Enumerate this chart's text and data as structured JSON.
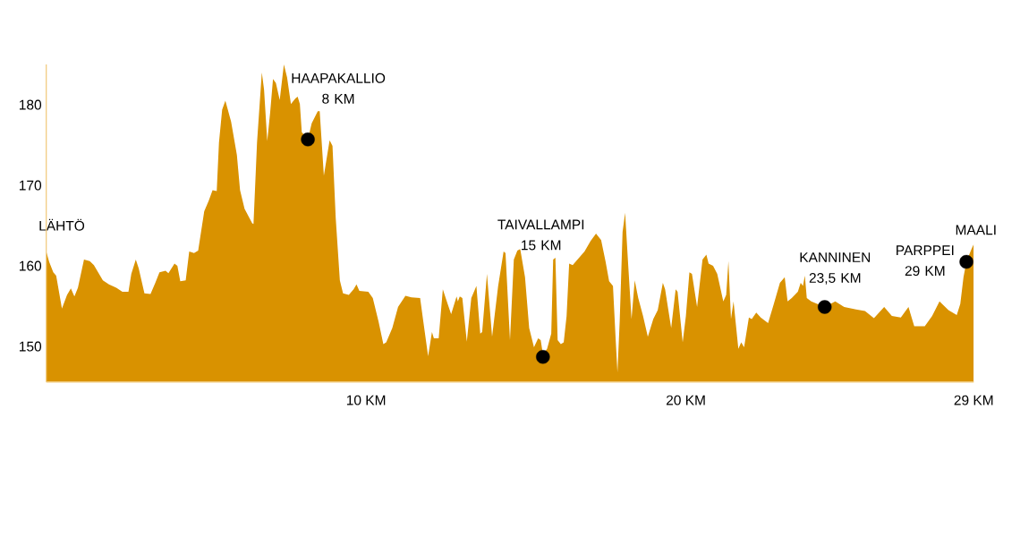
{
  "chart_data": {
    "type": "area",
    "xlim": [
      0,
      29.0
    ],
    "ylim": [
      145.6,
      185.0
    ],
    "xticks": [
      {
        "value": 10,
        "label": "10 KM"
      },
      {
        "value": 20,
        "label": "20 KM"
      },
      {
        "value": 29,
        "label": "29 KM"
      }
    ],
    "yticks": [
      150,
      160,
      170,
      180
    ],
    "series": [
      {
        "color": "#d99200",
        "x": [
          0.0,
          0.09,
          0.22,
          0.31,
          0.49,
          0.65,
          0.77,
          0.88,
          0.99,
          1.18,
          1.36,
          1.49,
          1.77,
          1.96,
          2.19,
          2.38,
          2.57,
          2.66,
          2.8,
          2.89,
          3.07,
          3.26,
          3.41,
          3.54,
          3.73,
          3.82,
          4.01,
          4.1,
          4.19,
          4.36,
          4.47,
          4.62,
          4.75,
          4.94,
          5.08,
          5.2,
          5.33,
          5.4,
          5.5,
          5.6,
          5.78,
          5.96,
          6.06,
          6.2,
          6.44,
          6.48,
          6.59,
          6.74,
          6.81,
          6.91,
          7.0,
          7.09,
          7.18,
          7.3,
          7.43,
          7.53,
          7.65,
          7.79,
          7.86,
          7.93,
          7.99,
          8.18,
          8.3,
          8.49,
          8.55,
          8.68,
          8.86,
          8.95,
          9.05,
          9.18,
          9.28,
          9.46,
          9.61,
          9.7,
          9.79,
          10.07,
          10.21,
          10.39,
          10.54,
          10.63,
          10.82,
          11.0,
          11.23,
          11.42,
          11.69,
          11.79,
          11.94,
          12.06,
          12.12,
          12.27,
          12.4,
          12.55,
          12.66,
          12.83,
          12.87,
          12.93,
          13.01,
          13.15,
          13.29,
          13.45,
          13.57,
          13.63,
          13.78,
          13.94,
          14.13,
          14.3,
          14.36,
          14.5,
          14.62,
          14.73,
          14.82,
          14.97,
          15.1,
          15.25,
          15.38,
          15.46,
          15.53,
          15.66,
          15.79,
          15.85,
          15.92,
          15.99,
          16.09,
          16.18,
          16.27,
          16.35,
          16.46,
          16.61,
          16.83,
          17.02,
          17.19,
          17.35,
          17.49,
          17.6,
          17.72,
          17.8,
          17.86,
          17.93,
          18.02,
          18.1,
          18.19,
          18.3,
          18.4,
          18.51,
          18.66,
          18.81,
          18.98,
          19.12,
          19.28,
          19.35,
          19.54,
          19.68,
          19.74,
          19.9,
          20.0,
          20.11,
          20.19,
          20.35,
          20.52,
          20.64,
          20.71,
          20.85,
          20.98,
          21.17,
          21.26,
          21.33,
          21.41,
          21.49,
          21.64,
          21.73,
          21.82,
          21.97,
          22.06,
          22.2,
          22.34,
          22.57,
          22.75,
          22.94,
          23.09,
          23.18,
          23.31,
          23.5,
          23.59,
          23.66,
          23.72,
          23.78,
          23.92,
          24.34,
          24.67,
          24.95,
          25.32,
          25.6,
          25.88,
          26.2,
          26.44,
          26.72,
          26.96,
          27.14,
          27.47,
          27.7,
          27.93,
          28.21,
          28.47,
          28.58,
          28.68,
          28.77,
          28.91,
          29.0
        ],
        "values": [
          161.8,
          160.5,
          159.2,
          158.8,
          154.7,
          156.4,
          157.2,
          156.2,
          157.3,
          160.8,
          160.6,
          160.1,
          158.2,
          157.7,
          157.3,
          156.8,
          156.8,
          159.0,
          160.8,
          159.7,
          156.6,
          156.5,
          157.9,
          159.2,
          159.4,
          159.1,
          160.3,
          160.0,
          158.1,
          158.2,
          161.8,
          161.6,
          161.9,
          166.8,
          168.1,
          169.4,
          169.3,
          175.3,
          179.4,
          180.5,
          177.9,
          173.8,
          169.4,
          167.1,
          165.3,
          165.2,
          175.3,
          184.0,
          181.9,
          175.5,
          179.0,
          183.2,
          182.7,
          180.6,
          185.0,
          183.4,
          180.1,
          180.8,
          181.0,
          180.1,
          176.6,
          175.7,
          177.7,
          179.2,
          179.2,
          171.2,
          175.6,
          174.9,
          166.0,
          158.2,
          156.6,
          156.4,
          157.1,
          157.7,
          156.9,
          156.8,
          156.0,
          153.1,
          150.3,
          150.5,
          152.3,
          154.9,
          156.3,
          156.1,
          156.0,
          153.1,
          148.8,
          151.8,
          151.0,
          151.0,
          157.1,
          155.3,
          154.0,
          156.2,
          155.6,
          156.2,
          156.0,
          150.6,
          156.0,
          157.5,
          151.6,
          151.8,
          159.0,
          151.2,
          157.5,
          161.8,
          161.6,
          150.8,
          160.8,
          161.9,
          162.1,
          158.6,
          152.3,
          149.9,
          151.0,
          150.8,
          149.0,
          149.7,
          151.6,
          160.8,
          161.0,
          150.8,
          150.3,
          150.5,
          153.8,
          160.3,
          160.1,
          160.8,
          161.8,
          163.1,
          164.0,
          163.2,
          160.5,
          158.1,
          157.5,
          151.2,
          146.8,
          153.1,
          164.2,
          166.6,
          160.5,
          153.4,
          158.2,
          156.0,
          153.8,
          151.2,
          153.4,
          154.5,
          157.9,
          157.1,
          152.3,
          157.1,
          156.8,
          150.5,
          153.8,
          159.2,
          159.0,
          154.9,
          160.8,
          161.4,
          160.3,
          160.0,
          159.0,
          155.6,
          156.4,
          160.6,
          153.4,
          155.6,
          149.7,
          150.5,
          149.9,
          153.6,
          153.4,
          154.2,
          153.6,
          152.9,
          155.3,
          157.9,
          158.6,
          155.6,
          156.0,
          156.8,
          157.9,
          157.5,
          158.8,
          156.0,
          155.6,
          154.9,
          155.6,
          154.9,
          154.6,
          154.4,
          153.5,
          154.9,
          153.8,
          153.6,
          154.9,
          152.5,
          152.5,
          153.8,
          155.6,
          154.5,
          153.9,
          155.3,
          158.6,
          160.5,
          161.9,
          162.7
        ]
      },
      {
        "type": "scatter",
        "color": "#000000",
        "marker": "circle",
        "x": [
          8.18,
          15.53,
          24.34,
          28.77
        ],
        "values": [
          175.7,
          148.7,
          154.9,
          160.5
        ]
      }
    ],
    "annotations": [
      {
        "text": "LÄHTÖ",
        "x": 0,
        "y": 161.8
      },
      {
        "text": "HAAPAKALLIO 8 KM",
        "x": 8.18,
        "y": 175.7
      },
      "TAIVALLAMPI 15 KM",
      {
        "text": "KANNINEN 23,5 KM",
        "x": 24.34,
        "y": 154.9
      },
      {
        "text": "PARPPEI 29 KM",
        "x": 28.77,
        "y": 160.5
      },
      {
        "text": "MAALI",
        "x": 29.0,
        "y": 162.7
      }
    ]
  }
}
